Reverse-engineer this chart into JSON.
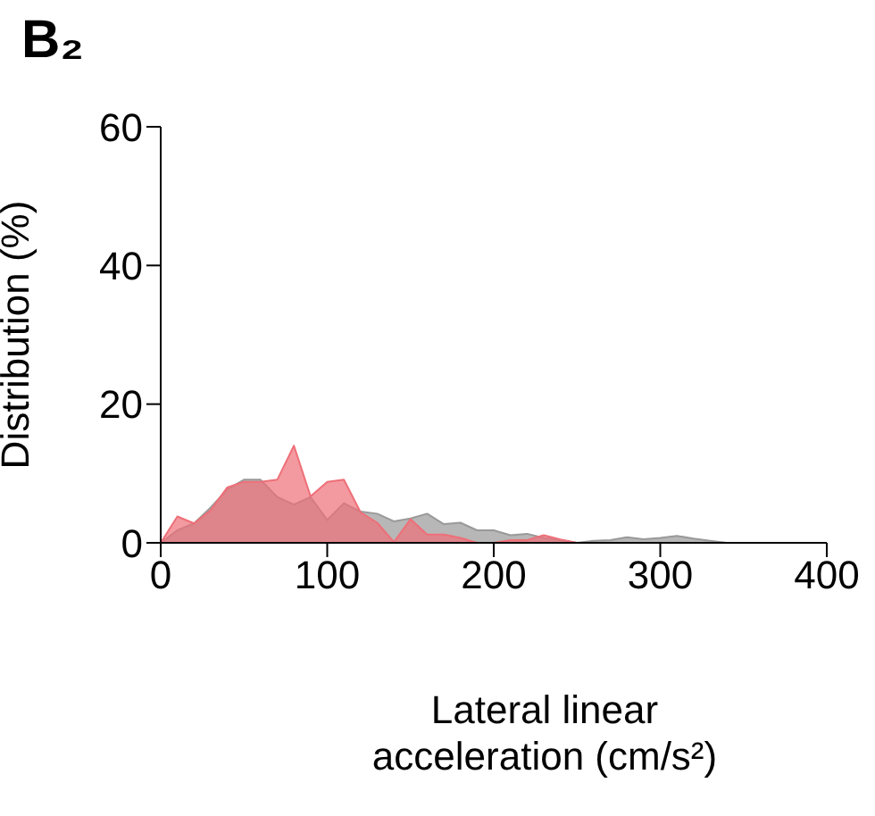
{
  "chart_data": {
    "type": "area",
    "title": "B₂",
    "xlabel": "Lateral linear acceleration (cm/s²)",
    "ylabel": "Distribution (%)",
    "x": [
      0,
      10,
      20,
      30,
      40,
      50,
      60,
      70,
      80,
      90,
      100,
      110,
      120,
      130,
      140,
      150,
      160,
      170,
      180,
      190,
      200,
      210,
      220,
      230,
      240,
      250,
      260,
      270,
      280,
      290,
      300,
      310,
      320,
      330,
      340
    ],
    "series": [
      {
        "color": "#999999",
        "values": [
          0,
          1.8,
          2.8,
          5.1,
          7.7,
          9.1,
          9.1,
          6.6,
          5.5,
          6.6,
          3.3,
          5.7,
          4.5,
          4.2,
          3.1,
          3.5,
          4.2,
          2.7,
          2.9,
          1.8,
          1.8,
          1.1,
          1.3,
          0.7,
          0.4,
          0,
          0.3,
          0.4,
          0.8,
          0.5,
          0.7,
          1,
          0.6,
          0.3,
          0
        ]
      },
      {
        "color": "#ee6f78",
        "values": [
          0,
          3.8,
          2.8,
          4.7,
          8,
          8.8,
          8.8,
          9.1,
          14,
          6.7,
          8.8,
          9.1,
          4.4,
          2.9,
          0.1,
          3.4,
          1.2,
          1.2,
          0.7,
          0,
          0,
          0.4,
          0.4,
          1.1,
          0.5,
          0,
          0,
          0,
          0,
          0,
          0,
          0,
          0,
          0,
          0
        ]
      }
    ],
    "xlim": [
      0,
      400
    ],
    "xticks": [
      0,
      100,
      200,
      300,
      400
    ],
    "ylim": [
      0,
      60
    ],
    "yticks": [
      0,
      20,
      40,
      60
    ],
    "grid": false,
    "legend": false
  }
}
